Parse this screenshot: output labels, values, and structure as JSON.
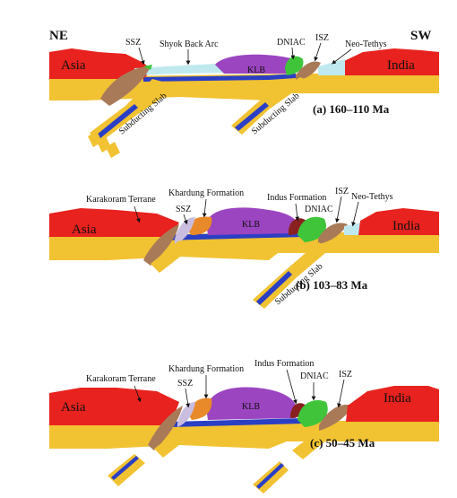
{
  "figure": {
    "orientation": {
      "left": "NE",
      "right": "SW"
    },
    "colors": {
      "continent_red": "#e8221e",
      "slab_yellow": "#f1c232",
      "slab_blue": "#2b3fc4",
      "ocean_light": "#bfe9ef",
      "klb_purple": "#9b45c0",
      "ssz_brown": "#a97a58",
      "dniac_green": "#3fc43a",
      "khardung_orange": "#e88a2a",
      "indus_darkred": "#8a2020",
      "ssz_lavender": "#c9bde0"
    },
    "panels": [
      {
        "caption": "(a) 160–110 Ma",
        "labels": {
          "asia": "Asia",
          "india": "India",
          "klb": "KLB",
          "ssz": "SSZ",
          "shyok": "Shyok Back Arc",
          "dniac": "DNIAC",
          "isz": "ISZ",
          "neotethys": "Neo-Tethys",
          "slab_left": "Subducting Slab",
          "slab_right": "Subducting Slab"
        }
      },
      {
        "caption": "(b) 103–83 Ma",
        "labels": {
          "karakoram": "Karakoram Terrane",
          "khardung": "Khardung Formation",
          "ssz": "SSZ",
          "klb": "KLB",
          "indus": "Indus Formation",
          "dniac": "DNIAC",
          "isz": "ISZ",
          "neotethys": "Neo-Tethys",
          "asia": "Asia",
          "india": "India",
          "slab": "Subducting Slab"
        }
      },
      {
        "caption": "(c) 50–45 Ma",
        "labels": {
          "karakoram": "Karakoram Terrane",
          "khardung": "Khardung Formation",
          "indus": "Indus Formation",
          "ssz": "SSZ",
          "klb": "KLB",
          "dniac": "DNIAC",
          "isz": "ISZ",
          "asia": "Asia",
          "india": "India"
        }
      }
    ]
  }
}
